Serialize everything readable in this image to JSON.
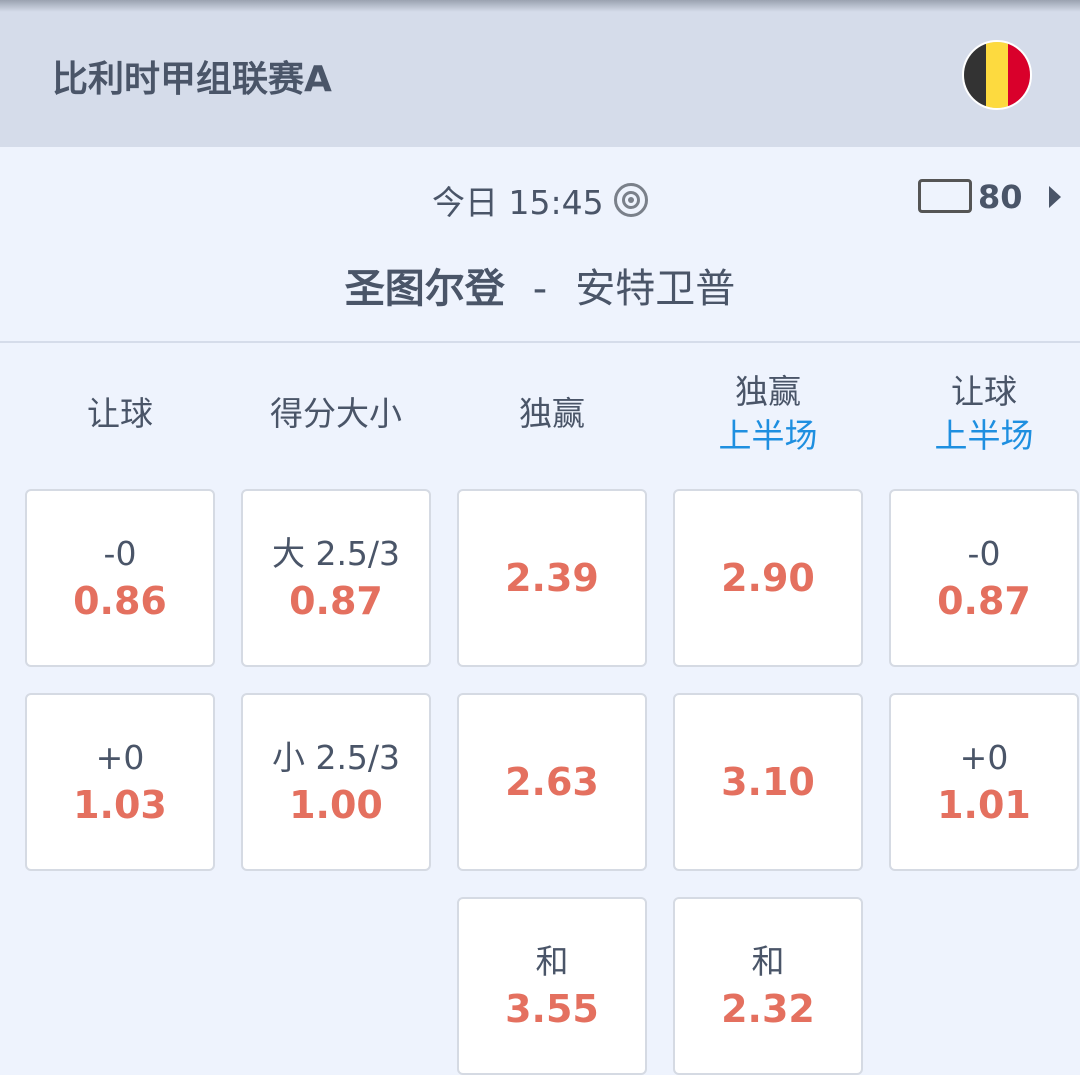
{
  "header": {
    "league": "比利时甲组联赛A",
    "flag_colors": [
      "#333333",
      "#fdda3f",
      "#d9002b"
    ]
  },
  "match": {
    "time": "今日 15:45",
    "tv_count": "80",
    "home": "圣图尔登",
    "separator": "-",
    "away": "安特卫普"
  },
  "colors": {
    "odds": "#e4705f",
    "accent": "#1e8fe0"
  },
  "columns": [
    {
      "label": "让球",
      "sub": "",
      "cells": [
        {
          "label": "-0",
          "value": "0.86"
        },
        {
          "label": "+0",
          "value": "1.03"
        }
      ]
    },
    {
      "label": "得分大小",
      "sub": "",
      "cells": [
        {
          "label": "大 2.5/3",
          "value": "0.87"
        },
        {
          "label": "小 2.5/3",
          "value": "1.00"
        }
      ]
    },
    {
      "label": "独赢",
      "sub": "",
      "cells": [
        {
          "label": "",
          "value": "2.39"
        },
        {
          "label": "",
          "value": "2.63"
        },
        {
          "label": "和",
          "value": "3.55"
        }
      ]
    },
    {
      "label": "独赢",
      "sub": "上半场",
      "cells": [
        {
          "label": "",
          "value": "2.90"
        },
        {
          "label": "",
          "value": "3.10"
        },
        {
          "label": "和",
          "value": "2.32"
        }
      ]
    },
    {
      "label": "让球",
      "sub": "上半场",
      "cells": [
        {
          "label": "-0",
          "value": "0.87"
        },
        {
          "label": "+0",
          "value": "1.01"
        }
      ]
    }
  ]
}
